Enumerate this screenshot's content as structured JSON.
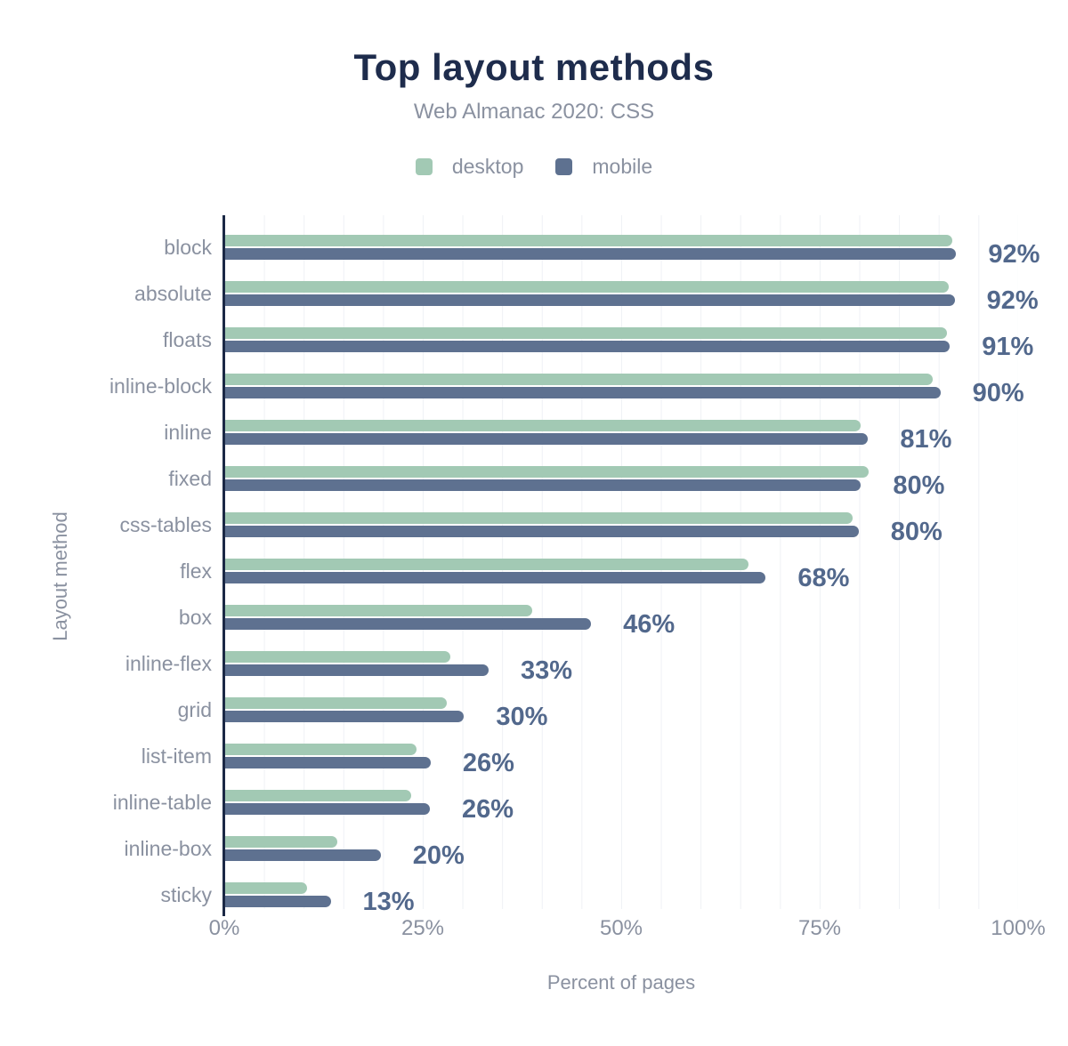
{
  "header": {
    "title": "Top layout methods",
    "subtitle": "Web Almanac 2020: CSS"
  },
  "legend": [
    {
      "label": "desktop",
      "color": "#a2c9b4"
    },
    {
      "label": "mobile",
      "color": "#5e7190"
    }
  ],
  "colors": {
    "title": "#1e2c4c",
    "axis_line": "#1b2845",
    "muted_text": "#8a91a0",
    "value_label": "#52688c",
    "gridline": "#eff1f5",
    "desktop_bar": "#a2c9b4",
    "mobile_bar": "#5e7190",
    "background": "#ffffff"
  },
  "chart_data": {
    "type": "bar",
    "orientation": "horizontal",
    "title": "Top layout methods",
    "subtitle": "Web Almanac 2020: CSS",
    "xlabel": "Percent of pages",
    "ylabel": "Layout method",
    "xlim": [
      0,
      100
    ],
    "x_ticks": [
      "0%",
      "25%",
      "50%",
      "75%",
      "100%"
    ],
    "grid": "vertical gridlines every 5%, light gray",
    "legend_position": "top center",
    "categories": [
      "block",
      "absolute",
      "floats",
      "inline-block",
      "inline",
      "fixed",
      "css-tables",
      "flex",
      "box",
      "inline-flex",
      "grid",
      "list-item",
      "inline-table",
      "inline-box",
      "sticky"
    ],
    "series": [
      {
        "name": "desktop",
        "color": "#a2c9b4",
        "values": [
          91.7,
          91.3,
          91.0,
          89.2,
          80.2,
          81.2,
          79.2,
          66.0,
          38.8,
          28.5,
          28.0,
          24.2,
          23.5,
          14.2,
          10.4
        ]
      },
      {
        "name": "mobile",
        "color": "#5e7190",
        "values": [
          92.2,
          92.0,
          91.4,
          90.2,
          81.1,
          80.2,
          79.9,
          68.2,
          46.2,
          33.3,
          30.2,
          26.0,
          25.9,
          19.7,
          13.4
        ]
      }
    ],
    "value_labels": [
      "92%",
      "92%",
      "91%",
      "90%",
      "81%",
      "80%",
      "80%",
      "68%",
      "46%",
      "33%",
      "30%",
      "26%",
      "26%",
      "20%",
      "13%"
    ]
  }
}
